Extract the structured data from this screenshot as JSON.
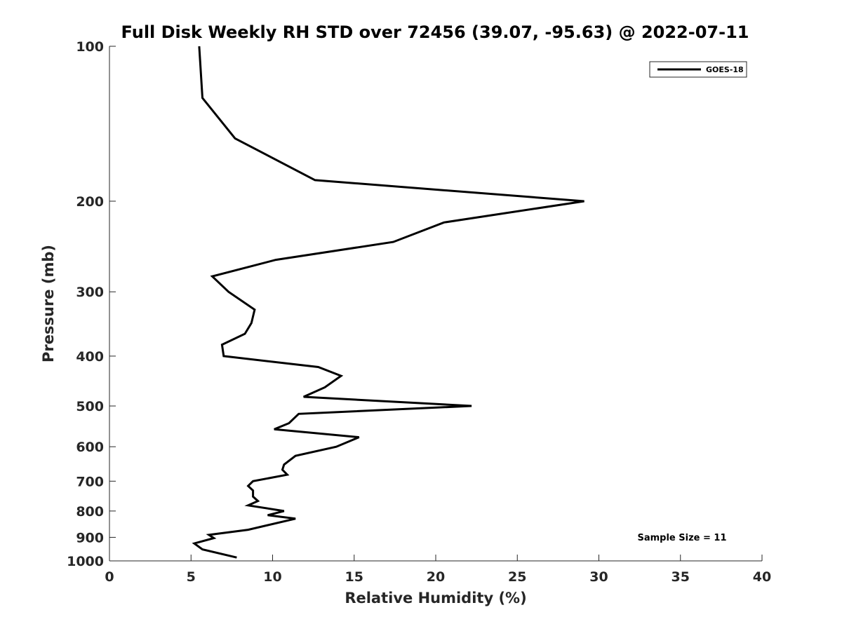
{
  "chart_data": {
    "type": "line",
    "title": "Full Disk Weekly RH STD over 72456 (39.07, -95.63) @ 2022-07-11",
    "xlabel": "Relative Humidity (%)",
    "ylabel": "Pressure (mb)",
    "xlim": [
      0,
      40
    ],
    "ylim": [
      100,
      1000
    ],
    "y_scale": "log",
    "y_reversed": true,
    "x_ticks": [
      0,
      5,
      10,
      15,
      20,
      25,
      30,
      35,
      40
    ],
    "y_ticks": [
      100,
      200,
      300,
      400,
      500,
      600,
      700,
      800,
      900,
      1000
    ],
    "grid": false,
    "legend_position": "top-right",
    "series": [
      {
        "name": "GOES-18",
        "color": "#000000",
        "points": [
          [
            5.5,
            100
          ],
          [
            5.7,
            126
          ],
          [
            7.7,
            151
          ],
          [
            12.6,
            182
          ],
          [
            29.1,
            200
          ],
          [
            20.5,
            220
          ],
          [
            17.4,
            240
          ],
          [
            10.2,
            260
          ],
          [
            6.3,
            280
          ],
          [
            7.3,
            300
          ],
          [
            8.9,
            325
          ],
          [
            8.7,
            345
          ],
          [
            8.3,
            362
          ],
          [
            6.9,
            380
          ],
          [
            7.0,
            400
          ],
          [
            12.8,
            420
          ],
          [
            14.2,
            437
          ],
          [
            13.2,
            460
          ],
          [
            11.9,
            480
          ],
          [
            22.2,
            500
          ],
          [
            11.6,
            518
          ],
          [
            11.0,
            540
          ],
          [
            10.1,
            555
          ],
          [
            15.3,
            575
          ],
          [
            13.9,
            600
          ],
          [
            11.4,
            625
          ],
          [
            10.7,
            650
          ],
          [
            10.6,
            665
          ],
          [
            10.9,
            680
          ],
          [
            8.8,
            700
          ],
          [
            8.5,
            715
          ],
          [
            8.8,
            730
          ],
          [
            8.8,
            750
          ],
          [
            9.1,
            765
          ],
          [
            8.5,
            780
          ],
          [
            10.7,
            800
          ],
          [
            9.7,
            815
          ],
          [
            11.4,
            828
          ],
          [
            8.5,
            870
          ],
          [
            6.1,
            890
          ],
          [
            6.4,
            903
          ],
          [
            5.2,
            925
          ],
          [
            5.7,
            950
          ],
          [
            7.8,
            985
          ]
        ]
      }
    ],
    "annotation": "Sample Size = 11"
  }
}
